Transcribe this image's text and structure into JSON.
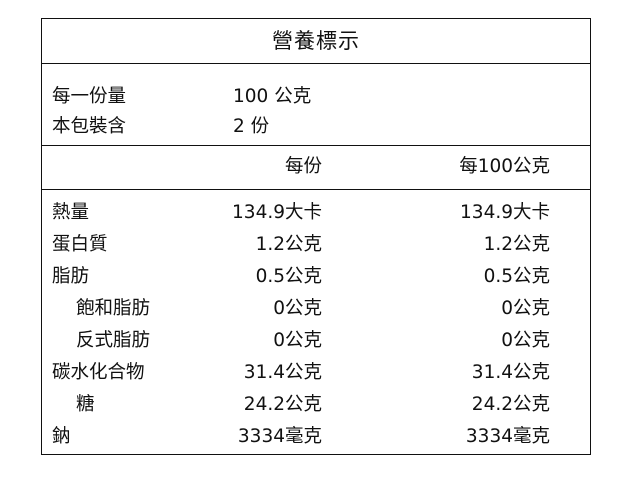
{
  "title": "營養標示",
  "serving": {
    "size_label": "每一份量",
    "size_value": "100 公克",
    "count_label": "本包裝含",
    "count_value": "2 份"
  },
  "headers": {
    "per_serving": "每份",
    "per_100g": "每100公克"
  },
  "rows": [
    {
      "name": "熱量",
      "per_serving": "134.9大卡",
      "per_100g": "134.9大卡",
      "indent": false
    },
    {
      "name": "蛋白質",
      "per_serving": "1.2公克",
      "per_100g": "1.2公克",
      "indent": false
    },
    {
      "name": "脂肪",
      "per_serving": "0.5公克",
      "per_100g": "0.5公克",
      "indent": false
    },
    {
      "name": "飽和脂肪",
      "per_serving": "0公克",
      "per_100g": "0公克",
      "indent": true
    },
    {
      "name": "反式脂肪",
      "per_serving": "0公克",
      "per_100g": "0公克",
      "indent": true
    },
    {
      "name": "碳水化合物",
      "per_serving": "31.4公克",
      "per_100g": "31.4公克",
      "indent": false
    },
    {
      "name": "糖",
      "per_serving": "24.2公克",
      "per_100g": "24.2公克",
      "indent": true
    },
    {
      "name": "鈉",
      "per_serving": "3334毫克",
      "per_100g": "3334毫克",
      "indent": false
    }
  ]
}
